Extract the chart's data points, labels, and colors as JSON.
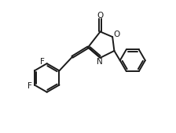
{
  "bg_color": "#ffffff",
  "line_color": "#1a1a1a",
  "line_width": 1.4,
  "font_size": 7.5,
  "figsize": [
    2.24,
    1.7
  ],
  "dpi": 100,
  "xlim": [
    0.0,
    10.0
  ],
  "ylim": [
    1.5,
    8.5
  ]
}
